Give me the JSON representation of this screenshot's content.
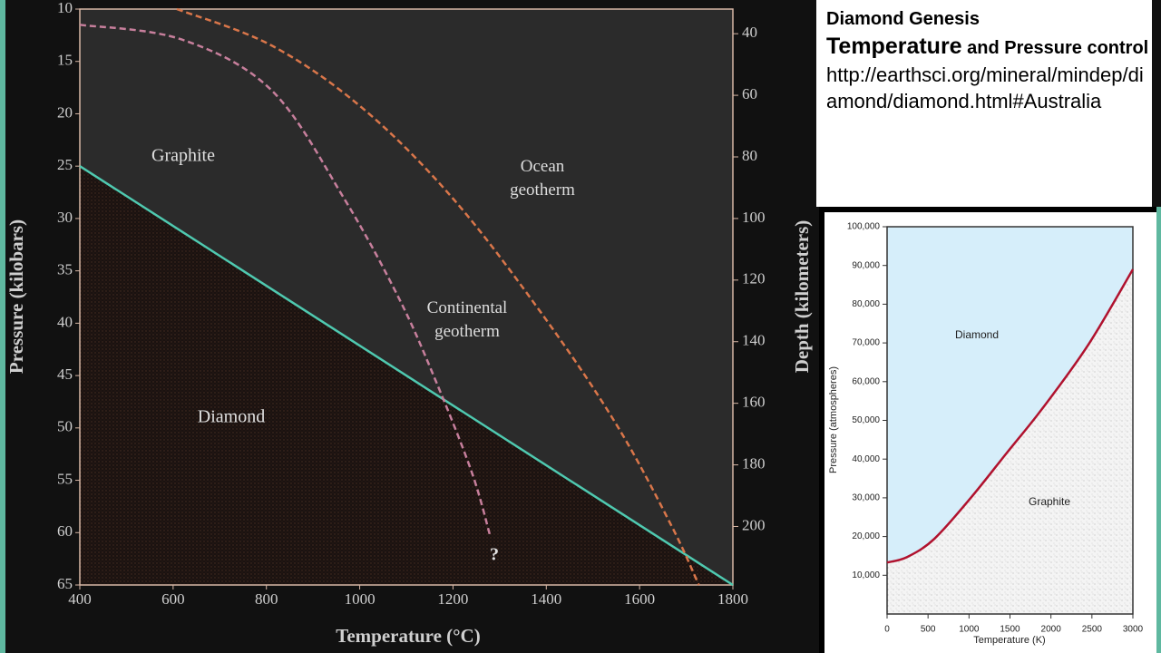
{
  "slide": {
    "heading": "Diamond Genesis",
    "subheading_large": "Temperature",
    "subheading_small": "and Pressure control",
    "link": "http://earthsci.org/mineral/mindep/diamond/diamond.html#Australia"
  },
  "chart_data": [
    {
      "type": "line",
      "x_label": "Temperature (°C)",
      "y_label": "Pressure (kilobars)",
      "y2_label": "Depth (kilometers)",
      "xlim": [
        400,
        1800
      ],
      "xticks": [
        400,
        600,
        800,
        1000,
        1200,
        1400,
        1600,
        1800
      ],
      "ylim": [
        65,
        10
      ],
      "yticks": [
        10,
        15,
        20,
        25,
        30,
        35,
        40,
        45,
        50,
        55,
        60,
        65
      ],
      "y2lim": [
        219,
        32
      ],
      "y2ticks": [
        40,
        60,
        80,
        100,
        120,
        140,
        160,
        180,
        200
      ],
      "series": [
        {
          "color": "#4fc9b0",
          "x": [
            400,
            1800
          ],
          "values": [
            25,
            65
          ]
        },
        {
          "name": "Continental geotherm",
          "color": "#c77f9c",
          "dashed": true,
          "x": [
            400,
            618,
            812,
            968,
            1085,
            1163,
            1240,
            1279
          ],
          "values": [
            11.5,
            12.9,
            17.8,
            28.2,
            37.7,
            45.5,
            54.2,
            60.2
          ]
        },
        {
          "name": "Ocean geotherm",
          "color": "#d9764a",
          "dashed": true,
          "x": [
            608,
            812,
            1007,
            1202,
            1397,
            1552,
            1669,
            1727
          ],
          "values": [
            10,
            13.5,
            19.5,
            28.2,
            39.5,
            49.8,
            59.4,
            65
          ]
        }
      ],
      "annotations": [
        "Graphite",
        "Diamond",
        "?"
      ]
    },
    {
      "type": "line",
      "x_label": "Temperature (K)",
      "y_label": "Pressure (atmospheres)",
      "xlim": [
        0,
        3000
      ],
      "xticks": [
        0,
        500,
        1000,
        1500,
        2000,
        2500,
        3000
      ],
      "ylim": [
        0,
        100000
      ],
      "yticks": [
        {
          "value": 10000,
          "label": "10,000"
        },
        {
          "value": 20000,
          "label": "20,000"
        },
        {
          "value": 30000,
          "label": "30,000"
        },
        {
          "value": 40000,
          "label": "40,000"
        },
        {
          "value": 50000,
          "label": "50,000"
        },
        {
          "value": 60000,
          "label": "60,000"
        },
        {
          "value": 70000,
          "label": "70,000"
        },
        {
          "value": 80000,
          "label": "80,000"
        },
        {
          "value": 90000,
          "label": "90,000"
        },
        {
          "value": 100000,
          "label": "100,000"
        }
      ],
      "series": [
        {
          "color": "#b0122e",
          "x": [
            0,
            244,
            576,
            1018,
            1461,
            1904,
            2458,
            3000
          ],
          "values": [
            13300,
            14700,
            19400,
            29900,
            41600,
            53300,
            69600,
            89000
          ]
        }
      ],
      "annotations": [
        "Diamond",
        "Graphite"
      ]
    }
  ]
}
